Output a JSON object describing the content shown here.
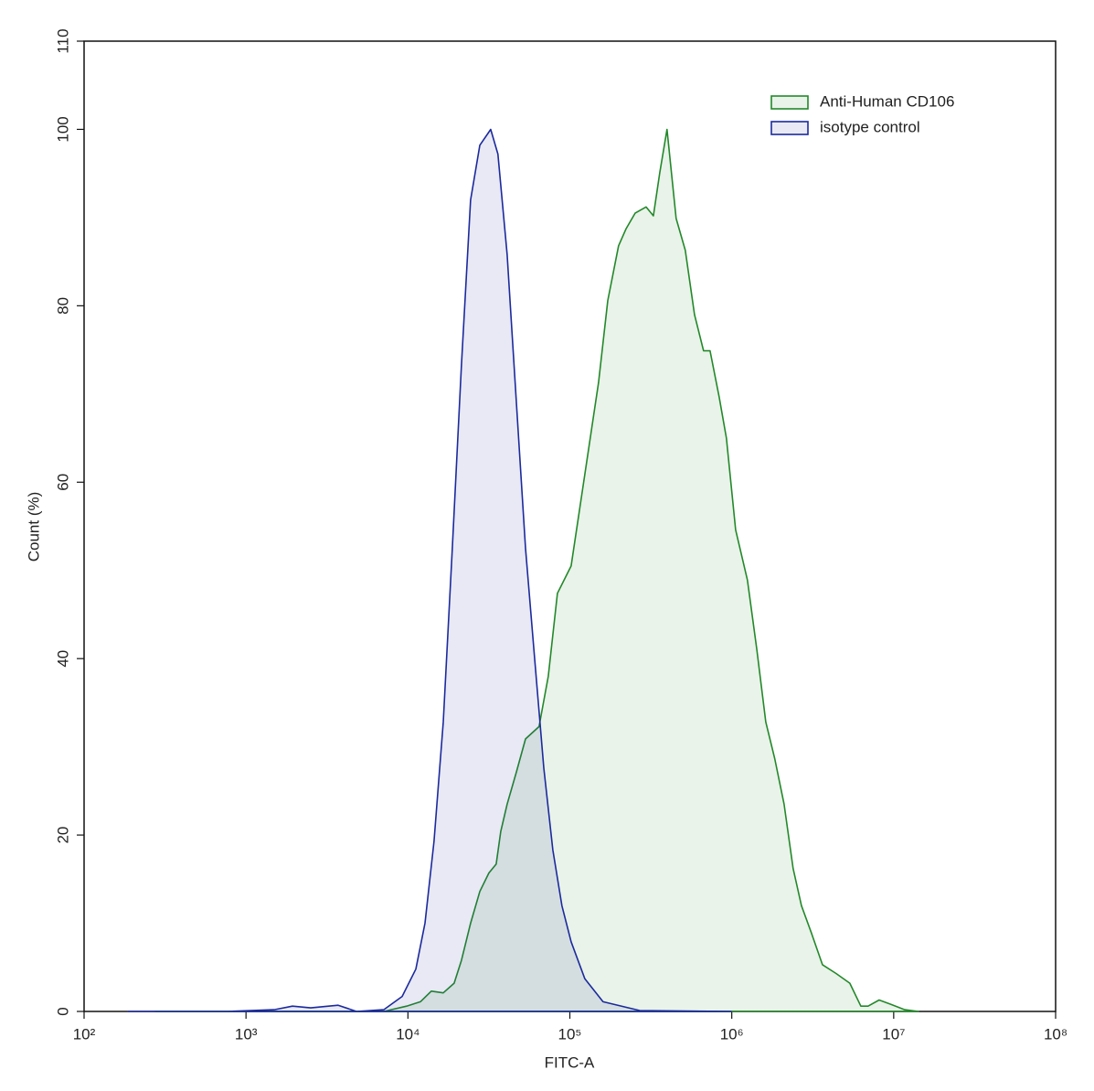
{
  "chart_data": {
    "type": "area",
    "x_label": "FITC-A",
    "y_label": "Count  (%)",
    "xscale": "log",
    "xlim": [
      100,
      100000000
    ],
    "xticks": [
      {
        "value": 100,
        "label": "10²"
      },
      {
        "value": 1000,
        "label": "10³"
      },
      {
        "value": 10000,
        "label": "10⁴"
      },
      {
        "value": 100000,
        "label": "10⁵"
      },
      {
        "value": 1000000,
        "label": "10⁶"
      },
      {
        "value": 10000000,
        "label": "10⁷"
      },
      {
        "value": 100000000,
        "label": "10⁸"
      }
    ],
    "ylim": [
      0,
      110
    ],
    "yticks": [
      0,
      20,
      40,
      60,
      80,
      100,
      110
    ],
    "legend": "top-right",
    "series": [
      {
        "name": "Anti-Human CD106",
        "color": "#23882a",
        "x": [
          275,
          1493,
          7096,
          9820,
          11940,
          13940,
          16520,
          19300,
          21420,
          24380,
          27790,
          31620,
          35090,
          37440,
          41020,
          46670,
          53210,
          64560,
          73560,
          83750,
          101800,
          123800,
          150300,
          171400,
          200000,
          222200,
          252900,
          295800,
          328100,
          359100,
          398100,
          453600,
          516400,
          588800,
          669900,
          734500,
          835600,
          926800,
          1057000,
          1250000,
          1426000,
          1622000,
          1845000,
          2104000,
          2393000,
          2692000,
          3105000,
          3631000,
          4406000,
          5358000,
          6266000,
          6950000,
          8128000,
          9616000,
          11700000,
          14190000
        ],
        "values": [
          0,
          0,
          0,
          0.6,
          1.1,
          2.3,
          2.1,
          3.2,
          5.8,
          10,
          13.6,
          15.7,
          16.7,
          20.4,
          23.5,
          27.1,
          30.9,
          32.3,
          38,
          47.4,
          50.5,
          60.9,
          71.3,
          80.6,
          86.8,
          88.7,
          90.5,
          91.2,
          90.2,
          95.1,
          100,
          89.9,
          86.3,
          79,
          74.9,
          74.9,
          69.7,
          65,
          54.6,
          48.9,
          41.1,
          32.8,
          28.6,
          23.5,
          16.2,
          12,
          8.9,
          5.3,
          4.3,
          3.2,
          0.6,
          0.6,
          1.3,
          0.8,
          0.2,
          0
        ]
      },
      {
        "name": "isotype control",
        "color": "#1c2a9c",
        "x": [
          187,
          780,
          1493,
          1937,
          2512,
          3707,
          4808,
          7096,
          9204,
          11190,
          12740,
          14500,
          16520,
          18800,
          21420,
          24380,
          27790,
          32440,
          35980,
          41020,
          46670,
          53210,
          60530,
          69020,
          78520,
          89330,
          101800,
          123800,
          160300,
          269800,
          990800
        ],
        "values": [
          0,
          0,
          0.2,
          0.6,
          0.4,
          0.7,
          0,
          0.2,
          1.7,
          4.8,
          10,
          19.3,
          32.8,
          52.5,
          73.3,
          92,
          98.2,
          100,
          97.2,
          85.8,
          69.2,
          52.5,
          40.1,
          27.6,
          18.3,
          12,
          7.9,
          3.7,
          1.1,
          0.1,
          0
        ]
      }
    ]
  }
}
